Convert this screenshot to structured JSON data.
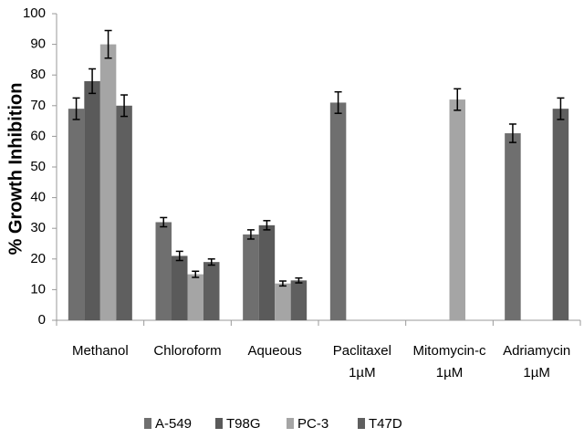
{
  "chart_data": {
    "type": "bar",
    "y_label": "% Growth Inhibition",
    "categories": [
      "Methanol",
      "Chloroform",
      "Aqueous",
      "Paclitaxel 1µM",
      "Mitomycin-c 1µM",
      "Adriamycin 1µM"
    ],
    "series": [
      {
        "name": "A-549",
        "color": "#6f6f6f",
        "values": [
          69,
          32,
          28,
          71,
          null,
          61
        ],
        "errors": [
          3.5,
          1.5,
          1.5,
          3.5,
          null,
          3
        ]
      },
      {
        "name": "T98G",
        "color": "#5a5a5a",
        "values": [
          78,
          21,
          31,
          null,
          null,
          null
        ],
        "errors": [
          4,
          1.5,
          1.5,
          null,
          null,
          null
        ]
      },
      {
        "name": "PC-3",
        "color": "#a5a5a5",
        "values": [
          90,
          15,
          12,
          null,
          72,
          null
        ],
        "errors": [
          4.5,
          1,
          0.8,
          null,
          3.5,
          null
        ]
      },
      {
        "name": "T47D",
        "color": "#5f5f5f",
        "values": [
          70,
          19,
          13,
          null,
          null,
          69
        ],
        "errors": [
          3.5,
          1,
          0.8,
          null,
          null,
          3.5
        ]
      }
    ],
    "ylim": [
      0,
      100
    ],
    "yticks": [
      0,
      10,
      20,
      30,
      40,
      50,
      60,
      70,
      80,
      90,
      100
    ],
    "grid": false
  }
}
